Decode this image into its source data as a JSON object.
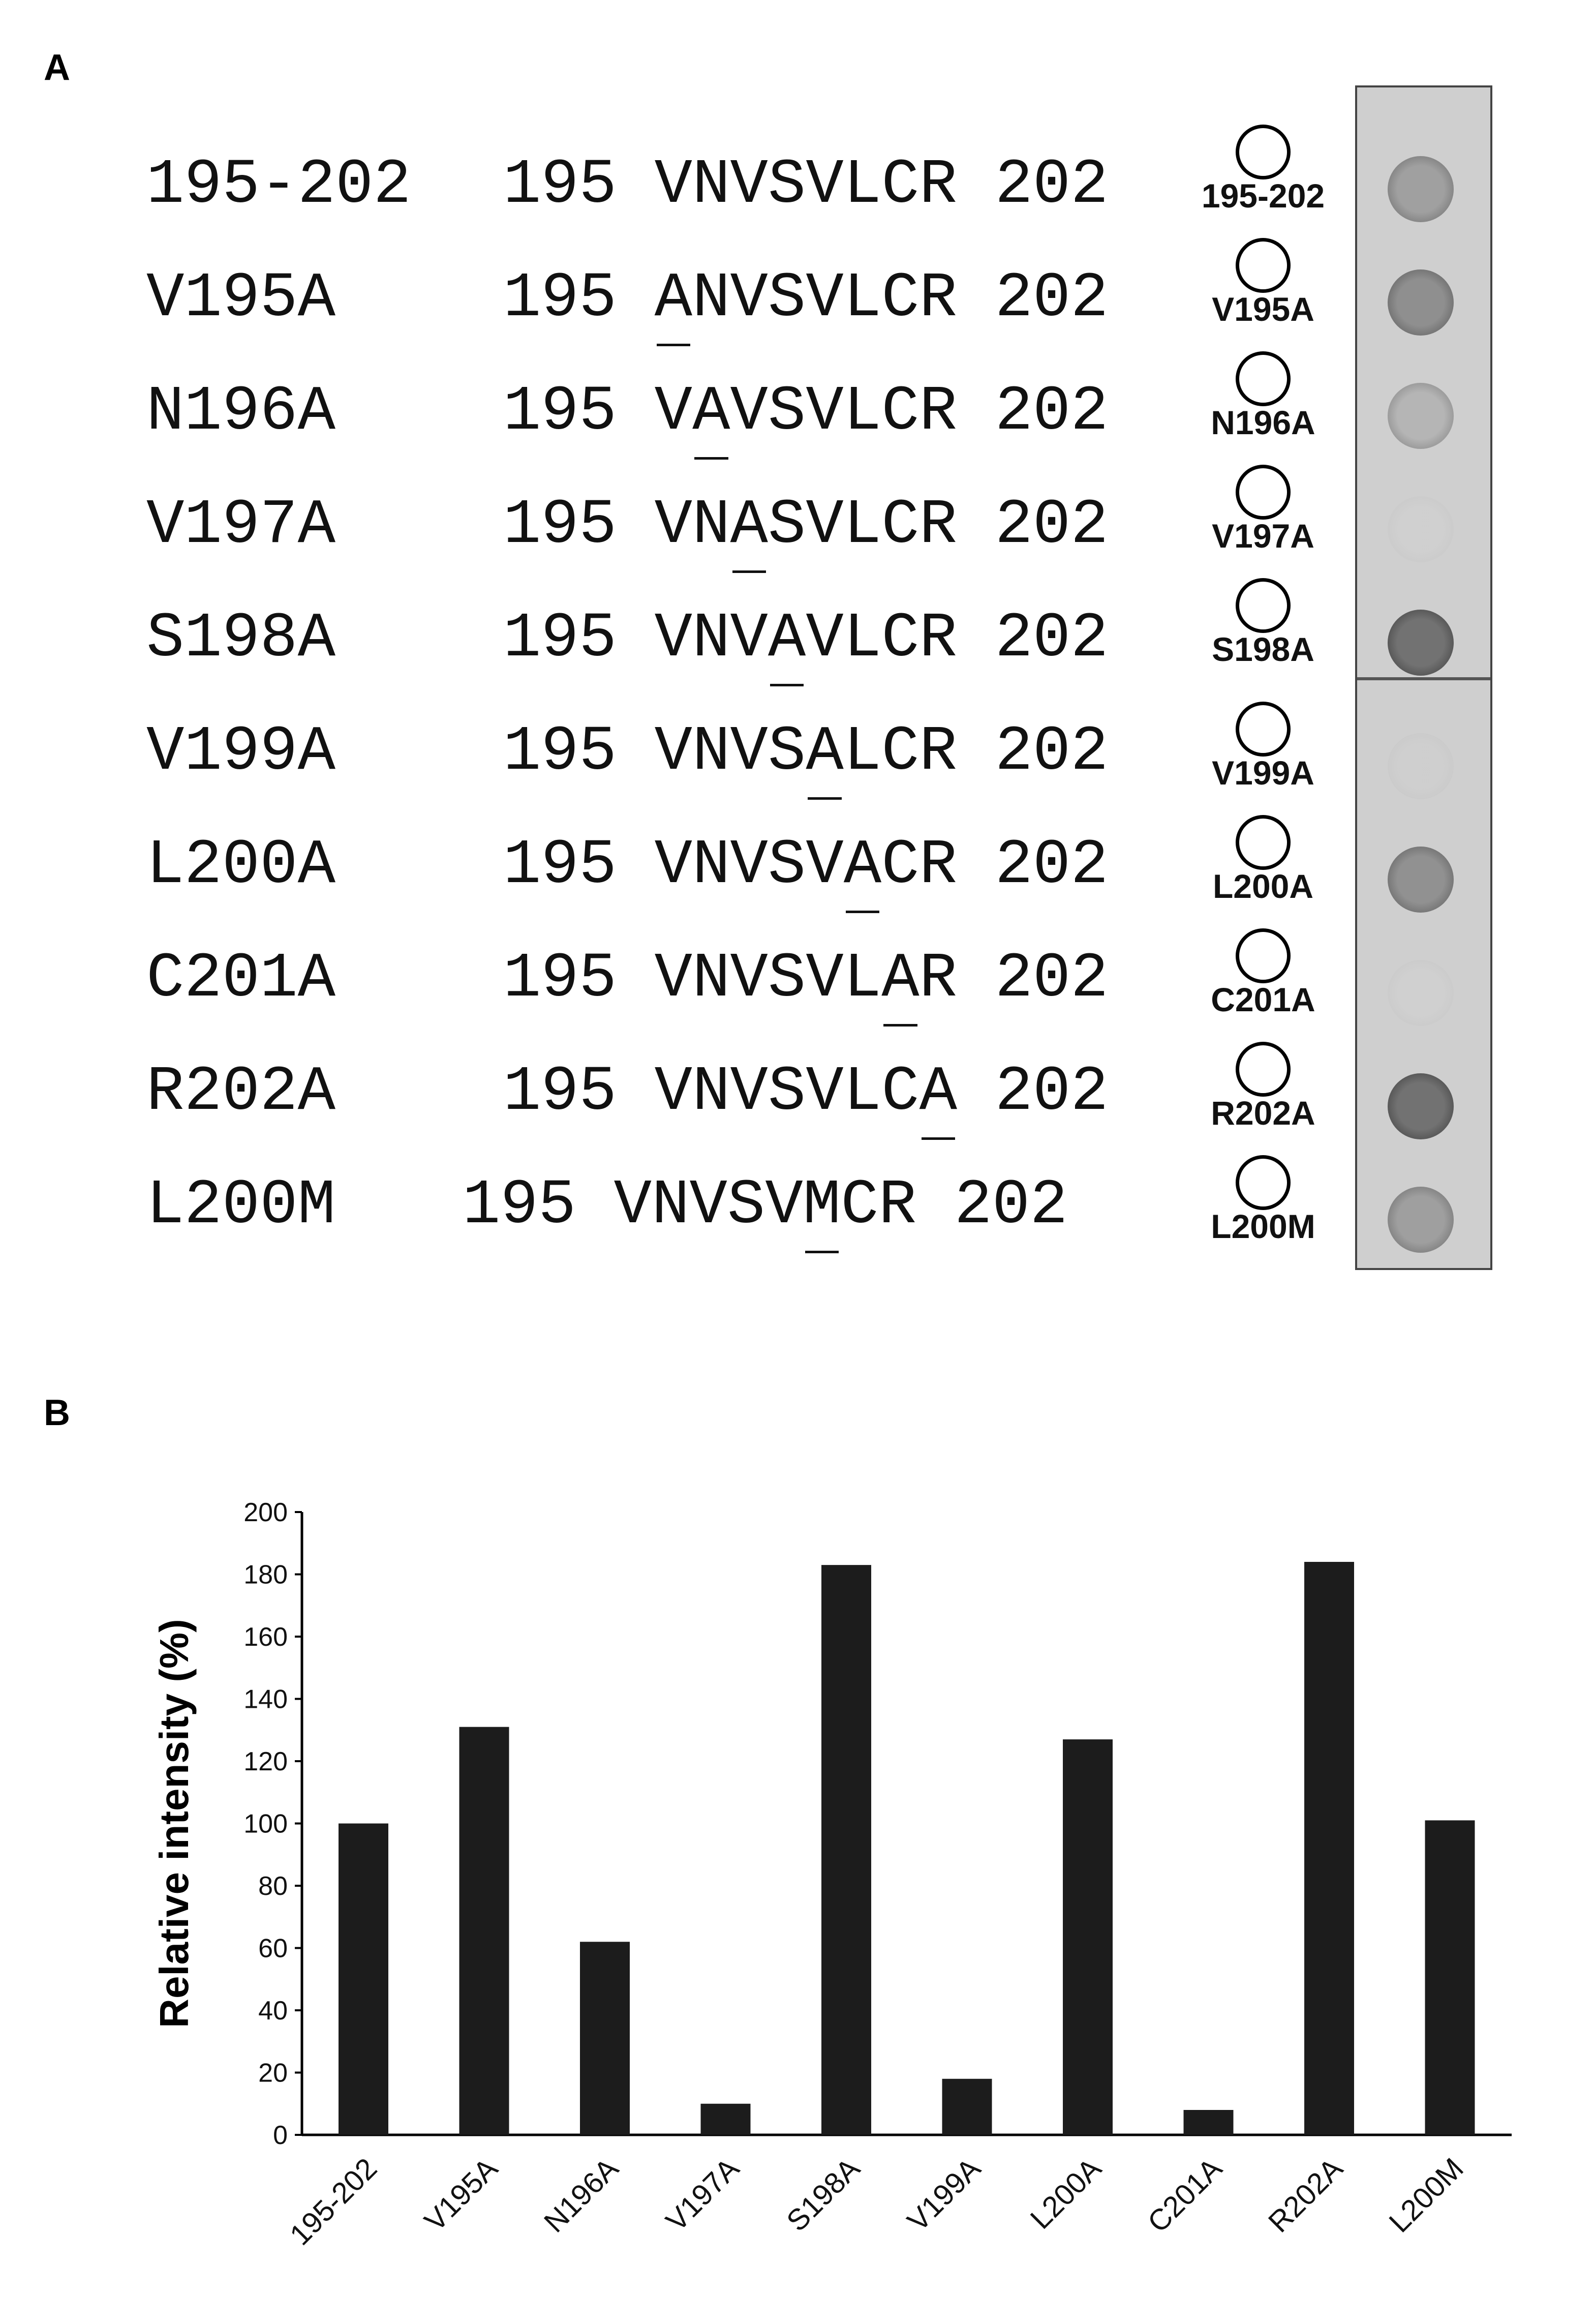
{
  "panel_a": {
    "label": "A",
    "peptides": [
      {
        "name": "195-202",
        "start": "195",
        "seq": "VNVSVLCR",
        "end": "202",
        "mut_index": -1,
        "dot_label": "195-202"
      },
      {
        "name": "V195A",
        "start": "195",
        "seq": "ANVSVLCR",
        "end": "202",
        "mut_index": 0,
        "dot_label": "V195A"
      },
      {
        "name": "N196A",
        "start": "195",
        "seq": "VAVSVLCR",
        "end": "202",
        "mut_index": 1,
        "dot_label": "N196A"
      },
      {
        "name": "V197A",
        "start": "195",
        "seq": "VNASVLCR",
        "end": "202",
        "mut_index": 2,
        "dot_label": "V197A"
      },
      {
        "name": "S198A",
        "start": "195",
        "seq": "VNVAVLCR",
        "end": "202",
        "mut_index": 3,
        "dot_label": "S198A"
      },
      {
        "name": "V199A",
        "start": "195",
        "seq": "VNVSALCR",
        "end": "202",
        "mut_index": 4,
        "dot_label": "V199A"
      },
      {
        "name": "L200A",
        "start": "195",
        "seq": "VNVSVACR",
        "end": "202",
        "mut_index": 5,
        "dot_label": "L200A"
      },
      {
        "name": "C201A",
        "start": "195",
        "seq": "VNVSVLAR",
        "end": "202",
        "mut_index": 6,
        "dot_label": "C201A"
      },
      {
        "name": "R202A",
        "start": "195",
        "seq": "VNVSVLCA",
        "end": "202",
        "mut_index": 7,
        "dot_label": "R202A"
      },
      {
        "name": "L200M",
        "start": "195",
        "seq": "VNVSVMCR",
        "end": "202",
        "mut_index": 5,
        "dot_label": "L200M"
      }
    ]
  },
  "panel_b": {
    "label": "B"
  },
  "chart_data": {
    "type": "bar",
    "title": "",
    "xlabel": "",
    "ylabel": "Relative intensity (%)",
    "categories": [
      "195-202",
      "V195A",
      "N196A",
      "V197A",
      "S198A",
      "V199A",
      "L200A",
      "C201A",
      "R202A",
      "L200M"
    ],
    "values": [
      100,
      131,
      62,
      10,
      183,
      18,
      127,
      8,
      184,
      101
    ],
    "ylim": [
      0,
      200
    ],
    "yticks": [
      0,
      20,
      40,
      60,
      80,
      100,
      120,
      140,
      160,
      180,
      200
    ],
    "grid": false,
    "bar_color": "#1c1c1c"
  }
}
